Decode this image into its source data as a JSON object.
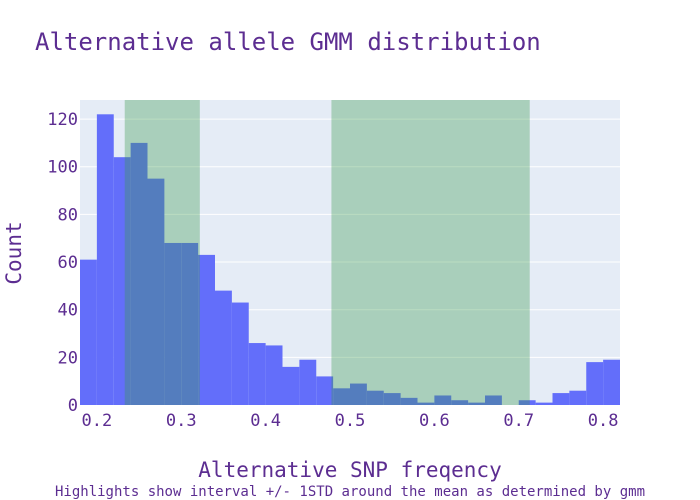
{
  "chart_data": {
    "type": "bar",
    "subtype": "histogram",
    "title": "Alternative allele GMM distribution",
    "xlabel": "Alternative SNP freqency",
    "ylabel": "Count",
    "annotation": "Highlights show interval +/- 1STD around the mean as determined by gmm",
    "xlim": [
      0.18,
      0.82
    ],
    "ylim": [
      0,
      128
    ],
    "bin_width": 0.02,
    "x_ticks": [
      0.2,
      0.3,
      0.4,
      0.5,
      0.6,
      0.7,
      0.8
    ],
    "x_tick_labels": [
      "0.2",
      "0.3",
      "0.4",
      "0.5",
      "0.6",
      "0.7",
      "0.8"
    ],
    "y_ticks": [
      0,
      20,
      40,
      60,
      80,
      100,
      120
    ],
    "y_tick_labels": [
      "0",
      "20",
      "40",
      "60",
      "80",
      "100",
      "120"
    ],
    "bins": [
      {
        "x0": 0.18,
        "x1": 0.2,
        "count": 61
      },
      {
        "x0": 0.2,
        "x1": 0.22,
        "count": 122
      },
      {
        "x0": 0.22,
        "x1": 0.24,
        "count": 104
      },
      {
        "x0": 0.24,
        "x1": 0.26,
        "count": 110
      },
      {
        "x0": 0.26,
        "x1": 0.28,
        "count": 95
      },
      {
        "x0": 0.28,
        "x1": 0.3,
        "count": 68
      },
      {
        "x0": 0.3,
        "x1": 0.32,
        "count": 68
      },
      {
        "x0": 0.32,
        "x1": 0.34,
        "count": 63
      },
      {
        "x0": 0.34,
        "x1": 0.36,
        "count": 48
      },
      {
        "x0": 0.36,
        "x1": 0.38,
        "count": 43
      },
      {
        "x0": 0.38,
        "x1": 0.4,
        "count": 26
      },
      {
        "x0": 0.4,
        "x1": 0.42,
        "count": 25
      },
      {
        "x0": 0.42,
        "x1": 0.44,
        "count": 16
      },
      {
        "x0": 0.44,
        "x1": 0.46,
        "count": 19
      },
      {
        "x0": 0.46,
        "x1": 0.48,
        "count": 12
      },
      {
        "x0": 0.48,
        "x1": 0.5,
        "count": 7
      },
      {
        "x0": 0.5,
        "x1": 0.52,
        "count": 9
      },
      {
        "x0": 0.52,
        "x1": 0.54,
        "count": 6
      },
      {
        "x0": 0.54,
        "x1": 0.56,
        "count": 5
      },
      {
        "x0": 0.56,
        "x1": 0.58,
        "count": 3
      },
      {
        "x0": 0.58,
        "x1": 0.6,
        "count": 1
      },
      {
        "x0": 0.6,
        "x1": 0.62,
        "count": 4
      },
      {
        "x0": 0.62,
        "x1": 0.64,
        "count": 2
      },
      {
        "x0": 0.64,
        "x1": 0.66,
        "count": 1
      },
      {
        "x0": 0.66,
        "x1": 0.68,
        "count": 4
      },
      {
        "x0": 0.68,
        "x1": 0.7,
        "count": 0
      },
      {
        "x0": 0.7,
        "x1": 0.72,
        "count": 2
      },
      {
        "x0": 0.72,
        "x1": 0.74,
        "count": 1
      },
      {
        "x0": 0.74,
        "x1": 0.76,
        "count": 5
      },
      {
        "x0": 0.76,
        "x1": 0.78,
        "count": 6
      },
      {
        "x0": 0.78,
        "x1": 0.8,
        "count": 18
      },
      {
        "x0": 0.8,
        "x1": 0.82,
        "count": 19
      }
    ],
    "highlight_intervals": [
      {
        "x0": 0.233,
        "x1": 0.322
      },
      {
        "x0": 0.478,
        "x1": 0.713
      }
    ],
    "grid": true,
    "legend": "none",
    "colors": {
      "bar": "#636efa",
      "highlight": "#3a9b4c",
      "plot_background": "#e5ecf6",
      "grid": "#ffffff",
      "text": "#5c2d91",
      "title": "#5c2d91"
    }
  }
}
